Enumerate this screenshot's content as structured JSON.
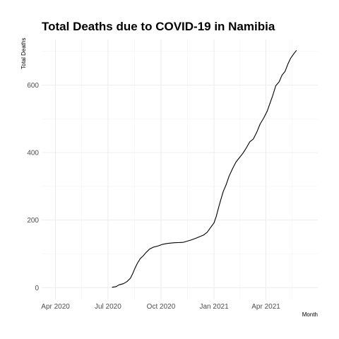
{
  "chart_data": {
    "type": "line",
    "title": "Total Deaths due to COVID-19 in Namibia",
    "xlabel": "Month",
    "ylabel": "Total Deaths",
    "x_tick_labels": [
      "Apr 2020",
      "Jul 2020",
      "Oct 2020",
      "Jan 2021",
      "Apr 2021"
    ],
    "x_ticks": [
      "2020-04-01",
      "2020-07-01",
      "2020-10-01",
      "2021-01-01",
      "2021-04-01"
    ],
    "y_ticks": [
      0,
      200,
      400,
      600
    ],
    "y_tick_labels": [
      "0",
      "200",
      "400",
      "600"
    ],
    "xlim": [
      "2020-03-08",
      "2021-06-30"
    ],
    "ylim": [
      -35,
      735
    ],
    "grid": true,
    "series": [
      {
        "color": "#000000",
        "x": [
          "2020-07-08",
          "2020-07-15",
          "2020-07-20",
          "2020-07-28",
          "2020-08-03",
          "2020-08-09",
          "2020-08-13",
          "2020-08-17",
          "2020-08-21",
          "2020-08-26",
          "2020-08-31",
          "2020-09-05",
          "2020-09-11",
          "2020-09-18",
          "2020-09-25",
          "2020-10-03",
          "2020-10-12",
          "2020-10-24",
          "2020-11-08",
          "2020-11-22",
          "2020-11-30",
          "2020-12-07",
          "2020-12-14",
          "2020-12-20",
          "2020-12-26",
          "2021-01-01",
          "2021-01-05",
          "2021-01-09",
          "2021-01-13",
          "2021-01-17",
          "2021-01-22",
          "2021-01-27",
          "2021-02-02",
          "2021-02-08",
          "2021-02-14",
          "2021-02-20",
          "2021-02-26",
          "2021-03-04",
          "2021-03-10",
          "2021-03-16",
          "2021-03-22",
          "2021-03-28",
          "2021-04-03",
          "2021-04-08",
          "2021-04-13",
          "2021-04-18",
          "2021-04-24",
          "2021-04-29",
          "2021-05-04",
          "2021-05-09",
          "2021-05-14",
          "2021-05-19",
          "2021-05-24"
        ],
        "y": [
          1,
          3,
          8,
          12,
          18,
          28,
          42,
          58,
          72,
          86,
          94,
          104,
          114,
          120,
          123,
          128,
          131,
          133,
          134,
          141,
          146,
          151,
          156,
          164,
          178,
          192,
          212,
          238,
          262,
          285,
          305,
          330,
          352,
          372,
          385,
          398,
          414,
          432,
          440,
          460,
          485,
          502,
          522,
          546,
          570,
          598,
          610,
          630,
          640,
          662,
          680,
          692,
          703
        ]
      }
    ]
  }
}
